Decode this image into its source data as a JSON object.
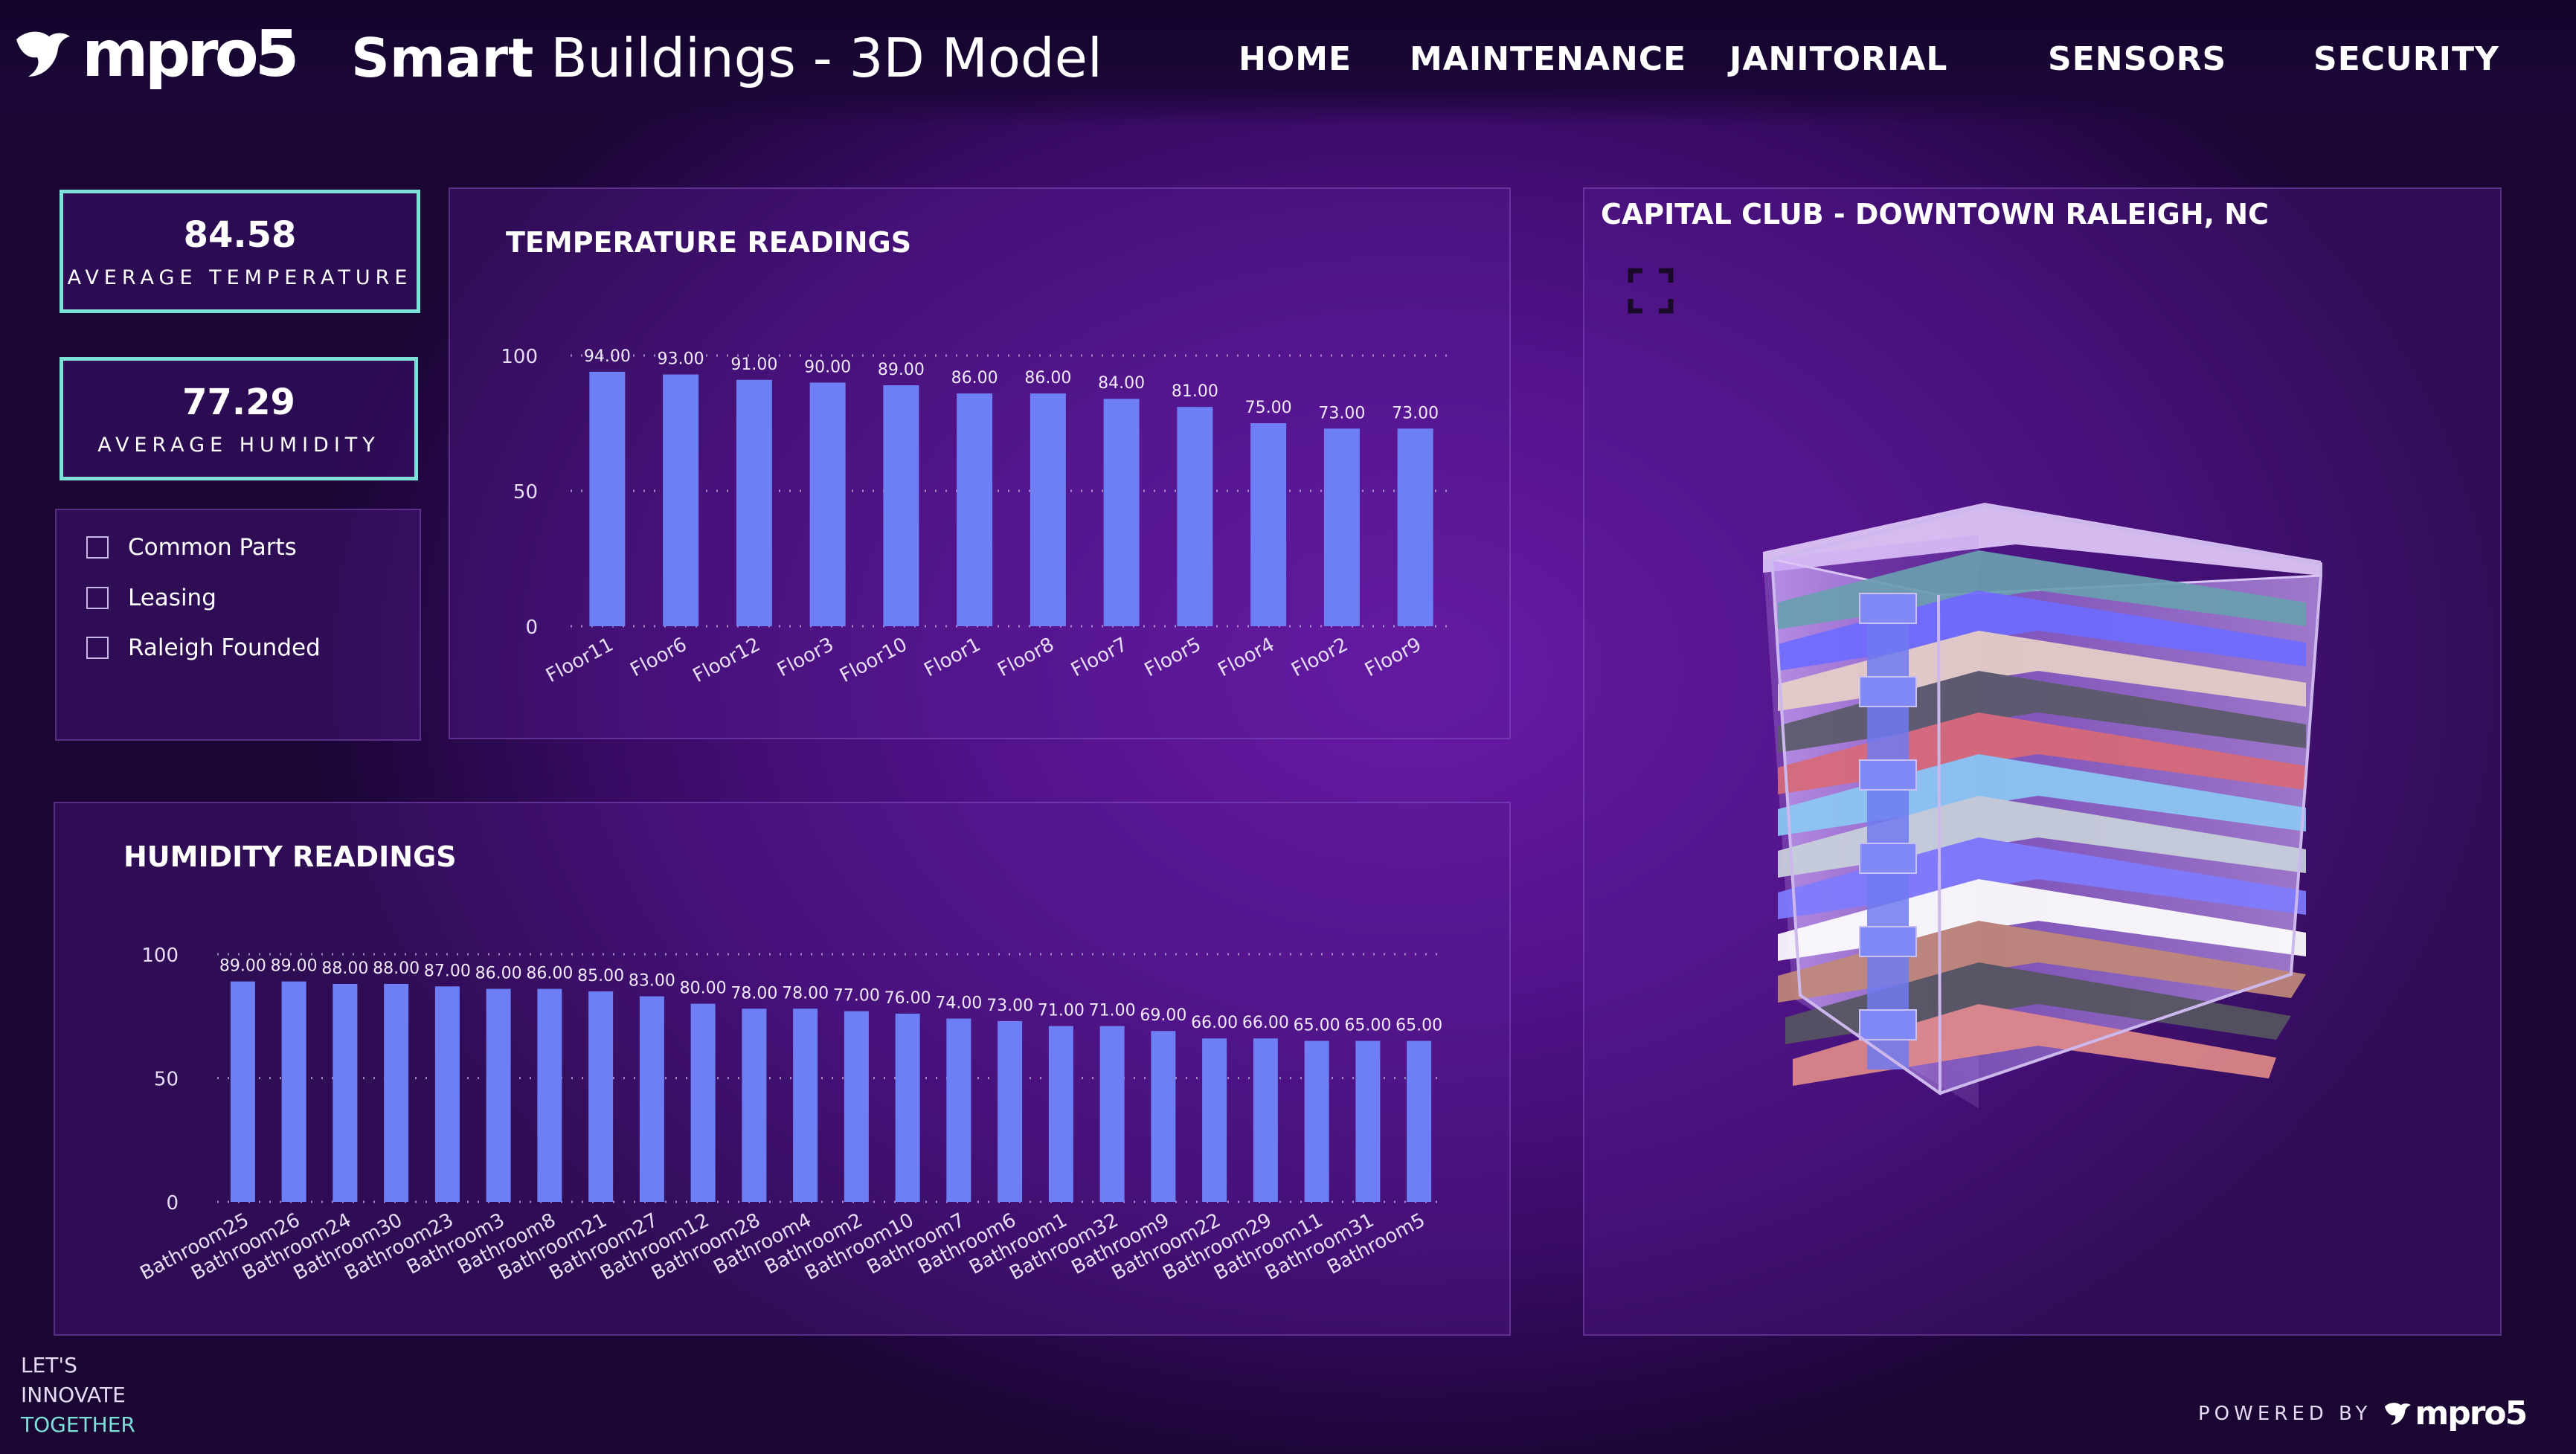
{
  "header": {
    "logo_text": "mpro5",
    "title_bold": "Smart",
    "title_rest": " Buildings - 3D Model",
    "nav": [
      "HOME",
      "MAINTENANCE",
      "JANITORIAL",
      "SENSORS",
      "SECURITY"
    ]
  },
  "kpis": {
    "temperature": {
      "value": "84.58",
      "label": "AVERAGE TEMPERATURE"
    },
    "humidity": {
      "value": "77.29",
      "label": "AVERAGE HUMIDITY"
    }
  },
  "slicer": {
    "items": [
      "Common Parts",
      "Leasing",
      "Raleigh Founded"
    ]
  },
  "temperature_panel": {
    "title": "TEMPERATURE READINGS"
  },
  "humidity_panel": {
    "title": "HUMIDITY READINGS"
  },
  "model_panel": {
    "title": "CAPITAL CLUB - DOWNTOWN RALEIGH, NC",
    "focus_icon": "focus-mode-icon"
  },
  "footer": {
    "tagline": [
      "LET'S",
      "INNOVATE",
      "TOGETHER"
    ],
    "powered_by": "POWERED BY",
    "powered_logo": "mpro5"
  },
  "colors": {
    "bar": "#6e7ff5",
    "accent": "#7ee0d8"
  },
  "chart_data": [
    {
      "type": "bar",
      "title": "TEMPERATURE READINGS",
      "categories": [
        "Floor11",
        "Floor6",
        "Floor12",
        "Floor3",
        "Floor10",
        "Floor1",
        "Floor8",
        "Floor7",
        "Floor5",
        "Floor4",
        "Floor2",
        "Floor9"
      ],
      "values": [
        94.0,
        93.0,
        91.0,
        90.0,
        89.0,
        86.0,
        86.0,
        84.0,
        81.0,
        75.0,
        73.0,
        73.0
      ],
      "yticks": [
        0,
        50,
        100
      ],
      "ylim": [
        0,
        100
      ],
      "grid": true
    },
    {
      "type": "bar",
      "title": "HUMIDITY READINGS",
      "categories": [
        "Bathroom25",
        "Bathroom26",
        "Bathroom24",
        "Bathroom30",
        "Bathroom23",
        "Bathroom3",
        "Bathroom8",
        "Bathroom21",
        "Bathroom27",
        "Bathroom12",
        "Bathroom28",
        "Bathroom4",
        "Bathroom2",
        "Bathroom10",
        "Bathroom7",
        "Bathroom6",
        "Bathroom1",
        "Bathroom32",
        "Bathroom9",
        "Bathroom22",
        "Bathroom29",
        "Bathroom11",
        "Bathroom31",
        "Bathroom5"
      ],
      "values": [
        89.0,
        89.0,
        88.0,
        88.0,
        87.0,
        86.0,
        86.0,
        85.0,
        83.0,
        80.0,
        78.0,
        78.0,
        77.0,
        76.0,
        74.0,
        73.0,
        71.0,
        71.0,
        69.0,
        66.0,
        66.0,
        65.0,
        65.0,
        65.0
      ],
      "yticks": [
        0,
        50,
        100
      ],
      "ylim": [
        0,
        100
      ],
      "grid": true
    }
  ]
}
